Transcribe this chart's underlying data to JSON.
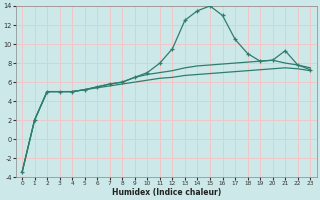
{
  "x": [
    0,
    1,
    2,
    3,
    4,
    5,
    6,
    7,
    8,
    9,
    10,
    11,
    12,
    13,
    14,
    15,
    16,
    17,
    18,
    19,
    20,
    21,
    22,
    23
  ],
  "line1": [
    -3.5,
    2.0,
    5.0,
    5.0,
    5.0,
    5.2,
    5.5,
    5.8,
    6.0,
    6.5,
    7.0,
    8.0,
    9.5,
    12.5,
    13.5,
    14.0,
    13.0,
    10.5,
    9.0,
    8.2,
    8.3,
    9.3,
    7.8,
    7.3
  ],
  "line2": [
    -3.5,
    2.0,
    5.0,
    5.0,
    5.0,
    5.2,
    5.5,
    5.8,
    6.0,
    6.5,
    6.8,
    7.0,
    7.2,
    7.5,
    7.7,
    7.8,
    7.9,
    8.0,
    8.1,
    8.2,
    8.3,
    8.0,
    7.8,
    7.5
  ],
  "line3": [
    -3.5,
    2.0,
    5.0,
    5.0,
    5.0,
    5.2,
    5.4,
    5.6,
    5.8,
    6.0,
    6.2,
    6.4,
    6.5,
    6.7,
    6.8,
    6.9,
    7.0,
    7.1,
    7.2,
    7.3,
    7.4,
    7.5,
    7.4,
    7.2
  ],
  "line_color": "#2e7d6e",
  "bg_color": "#cce8e8",
  "grid_color": "#f0c8c8",
  "xlabel": "Humidex (Indice chaleur)",
  "xlim": [
    -0.5,
    23.5
  ],
  "ylim": [
    -4,
    14
  ],
  "yticks": [
    -4,
    -2,
    0,
    2,
    4,
    6,
    8,
    10,
    12,
    14
  ],
  "xticks": [
    0,
    1,
    2,
    3,
    4,
    5,
    6,
    7,
    8,
    9,
    10,
    11,
    12,
    13,
    14,
    15,
    16,
    17,
    18,
    19,
    20,
    21,
    22,
    23
  ]
}
